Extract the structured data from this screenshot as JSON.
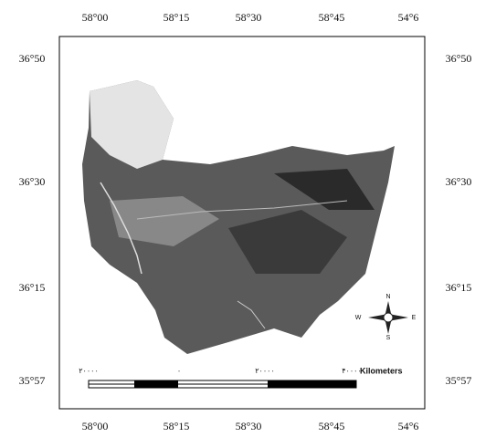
{
  "map": {
    "top_labels": [
      "58°00",
      "58°15",
      "58°30",
      "58°45",
      "54°6"
    ],
    "bottom_labels": [
      "58°00",
      "58°15",
      "58°30",
      "58°45",
      "54°6"
    ],
    "left_labels": [
      "36°50",
      "36°30",
      "36°15",
      "35°57"
    ],
    "right_labels": [
      "36°50",
      "36°30",
      "36°15",
      "35°57"
    ],
    "scale_bar": {
      "labels": [
        "۲۰۰۰۰",
        "۰",
        "۲۰۰۰۰",
        "۴۰۰۰۰"
      ],
      "unit": "Kilometers"
    },
    "compass": {
      "n": "N",
      "s": "S",
      "e": "E",
      "w": "W"
    }
  }
}
